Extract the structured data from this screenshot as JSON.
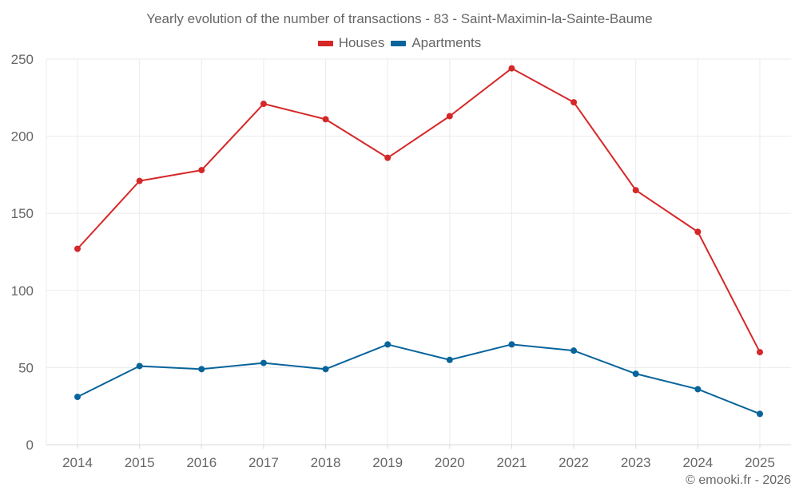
{
  "chart_data": {
    "type": "line",
    "title": "Yearly evolution of the number of transactions - 83 - Saint-Maximin-la-Sainte-Baume",
    "xlabel": "",
    "ylabel": "",
    "x": [
      "2014",
      "2015",
      "2016",
      "2017",
      "2018",
      "2019",
      "2020",
      "2021",
      "2022",
      "2023",
      "2024",
      "2025"
    ],
    "series": [
      {
        "name": "Houses",
        "color": "#d62728",
        "values": [
          127,
          171,
          178,
          221,
          211,
          186,
          213,
          244,
          222,
          165,
          138,
          60
        ]
      },
      {
        "name": "Apartments",
        "color": "#08649b",
        "values": [
          31,
          51,
          49,
          53,
          49,
          65,
          55,
          65,
          61,
          46,
          36,
          20
        ]
      }
    ],
    "ylim": [
      0,
      250
    ],
    "yticks": [
      0,
      50,
      100,
      150,
      200,
      250
    ],
    "grid": true,
    "legend_position": "top-center"
  },
  "credit": "© emooki.fr - 2026"
}
